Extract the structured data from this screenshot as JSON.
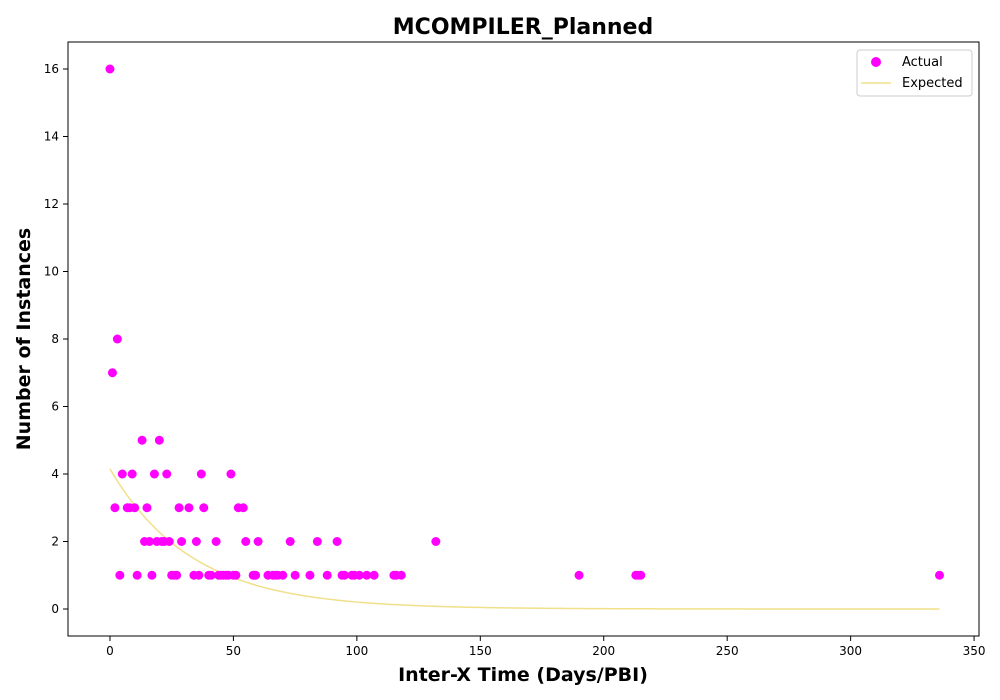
{
  "chart_data": {
    "type": "scatter",
    "title": "MCOMPILER_Planned",
    "xlabel": "Inter-X Time (Days/PBI)",
    "ylabel": "Number of Instances",
    "xlim": [
      -17,
      352
    ],
    "ylim": [
      -0.8,
      16.8
    ],
    "xticks": [
      0,
      50,
      100,
      150,
      200,
      250,
      300,
      350
    ],
    "yticks": [
      0,
      2,
      4,
      6,
      8,
      10,
      12,
      14,
      16
    ],
    "grid": false,
    "legend_position": "top-right",
    "series": [
      {
        "name": "Actual",
        "kind": "scatter",
        "color": "#ff00ff",
        "points": [
          [
            0,
            16
          ],
          [
            1,
            7
          ],
          [
            2,
            3
          ],
          [
            3,
            8
          ],
          [
            4,
            1
          ],
          [
            5,
            4
          ],
          [
            7,
            3
          ],
          [
            8,
            3
          ],
          [
            9,
            4
          ],
          [
            10,
            3
          ],
          [
            11,
            1
          ],
          [
            13,
            5
          ],
          [
            14,
            2
          ],
          [
            15,
            3
          ],
          [
            16,
            2
          ],
          [
            17,
            1
          ],
          [
            18,
            4
          ],
          [
            19,
            2
          ],
          [
            20,
            5
          ],
          [
            21,
            2
          ],
          [
            22,
            2
          ],
          [
            23,
            4
          ],
          [
            24,
            2
          ],
          [
            25,
            1
          ],
          [
            26,
            1
          ],
          [
            27,
            1
          ],
          [
            28,
            3
          ],
          [
            29,
            2
          ],
          [
            32,
            3
          ],
          [
            34,
            1
          ],
          [
            35,
            2
          ],
          [
            36,
            1
          ],
          [
            37,
            4
          ],
          [
            38,
            3
          ],
          [
            40,
            1
          ],
          [
            41,
            1
          ],
          [
            43,
            2
          ],
          [
            44,
            1
          ],
          [
            45,
            1
          ],
          [
            46,
            1
          ],
          [
            47,
            1
          ],
          [
            48,
            1
          ],
          [
            49,
            4
          ],
          [
            50,
            1
          ],
          [
            51,
            1
          ],
          [
            52,
            3
          ],
          [
            54,
            3
          ],
          [
            55,
            2
          ],
          [
            58,
            1
          ],
          [
            59,
            1
          ],
          [
            60,
            2
          ],
          [
            64,
            1
          ],
          [
            66,
            1
          ],
          [
            67,
            1
          ],
          [
            68,
            1
          ],
          [
            70,
            1
          ],
          [
            73,
            2
          ],
          [
            75,
            1
          ],
          [
            81,
            1
          ],
          [
            84,
            2
          ],
          [
            88,
            1
          ],
          [
            92,
            2
          ],
          [
            94,
            1
          ],
          [
            95,
            1
          ],
          [
            98,
            1
          ],
          [
            99,
            1
          ],
          [
            101,
            1
          ],
          [
            104,
            1
          ],
          [
            107,
            1
          ],
          [
            115,
            1
          ],
          [
            116,
            1
          ],
          [
            118,
            1
          ],
          [
            132,
            2
          ],
          [
            190,
            1
          ],
          [
            213,
            1
          ],
          [
            214,
            1
          ],
          [
            215,
            1
          ],
          [
            336,
            1
          ]
        ]
      },
      {
        "name": "Expected",
        "kind": "line",
        "color": "#f0e08a",
        "x_start": 0,
        "x_end": 336,
        "y_at_0": 4.15,
        "decay_per_day": 0.03
      }
    ]
  }
}
